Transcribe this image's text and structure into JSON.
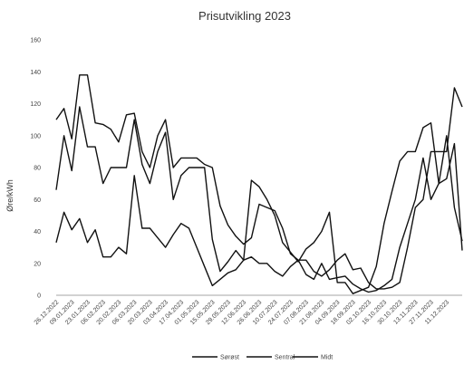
{
  "chart_data": {
    "type": "line",
    "title": "Prisutvikling 2023",
    "ylabel": "Øre/kWh",
    "xlabel": "",
    "ylim": [
      0,
      160
    ],
    "yticks": [
      0,
      20,
      40,
      60,
      80,
      100,
      120,
      140,
      160
    ],
    "grid": false,
    "legend_position": "bottom",
    "x_tick_labels": [
      "26.12.2022",
      "09.01.2023",
      "23.01.2023",
      "06.02.2023",
      "20.02.2023",
      "06.03.2023",
      "20.03.2023",
      "03.04.2023",
      "17.04.2023",
      "01.05.2023",
      "15.05.2023",
      "29.05.2023",
      "12.06.2023",
      "26.06.2023",
      "10.07.2023",
      "24.07.2023",
      "07.08.2023",
      "21.08.2023",
      "04.09.2023",
      "18.09.2023",
      "02.10.2023",
      "16.10.2023",
      "30.10.2023",
      "13.11.2023",
      "27.11.2023",
      "11.12.2023"
    ],
    "x": [
      "26.12.2022",
      "02.01.2023",
      "09.01.2023",
      "16.01.2023",
      "23.01.2023",
      "30.01.2023",
      "06.02.2023",
      "13.02.2023",
      "20.02.2023",
      "27.02.2023",
      "06.03.2023",
      "13.03.2023",
      "20.03.2023",
      "27.03.2023",
      "03.04.2023",
      "10.04.2023",
      "17.04.2023",
      "24.04.2023",
      "01.05.2023",
      "08.05.2023",
      "15.05.2023",
      "22.05.2023",
      "29.05.2023",
      "05.06.2023",
      "12.06.2023",
      "19.06.2023",
      "26.06.2023",
      "03.07.2023",
      "10.07.2023",
      "17.07.2023",
      "24.07.2023",
      "31.07.2023",
      "07.08.2023",
      "14.08.2023",
      "21.08.2023",
      "28.08.2023",
      "04.09.2023",
      "11.09.2023",
      "18.09.2023",
      "25.09.2023",
      "02.10.2023",
      "09.10.2023",
      "16.10.2023",
      "23.10.2023",
      "30.10.2023",
      "06.11.2023",
      "13.11.2023",
      "20.11.2023",
      "27.11.2023",
      "04.12.2023",
      "11.12.2023",
      "18.12.2023",
      "25.12.2023"
    ],
    "series": [
      {
        "name": "Sørøst",
        "values": [
          110,
          117,
          98,
          138,
          138,
          108,
          107,
          104,
          96,
          113,
          114,
          90,
          80,
          100,
          110,
          80,
          86,
          86,
          86,
          82,
          80,
          56,
          44,
          37,
          32,
          36,
          57,
          55,
          53,
          42,
          26,
          22,
          22,
          15,
          12,
          16,
          22,
          26,
          16,
          17,
          8,
          4,
          4,
          5,
          8,
          30,
          55,
          60,
          90,
          90,
          90,
          130,
          118
        ]
      },
      {
        "name": "Sentral",
        "values": [
          66,
          100,
          78,
          118,
          93,
          93,
          70,
          80,
          80,
          80,
          110,
          82,
          70,
          90,
          102,
          60,
          75,
          80,
          80,
          80,
          35,
          15,
          21,
          28,
          22,
          72,
          68,
          60,
          50,
          33,
          27,
          21,
          29,
          33,
          40,
          52,
          8,
          8,
          1,
          3,
          5,
          18,
          45,
          65,
          84,
          90,
          90,
          105,
          108,
          70,
          73,
          95,
          28
        ]
      },
      {
        "name": "Midt",
        "values": [
          33,
          52,
          41,
          48,
          33,
          41,
          24,
          24,
          30,
          26,
          75,
          42,
          42,
          36,
          30,
          38,
          45,
          42,
          30,
          18,
          6,
          10,
          14,
          16,
          22,
          24,
          20,
          20,
          15,
          12,
          18,
          22,
          13,
          10,
          20,
          10,
          11,
          12,
          7,
          4,
          2,
          3,
          6,
          10,
          30,
          45,
          60,
          86,
          60,
          70,
          100,
          55,
          34
        ]
      }
    ]
  }
}
